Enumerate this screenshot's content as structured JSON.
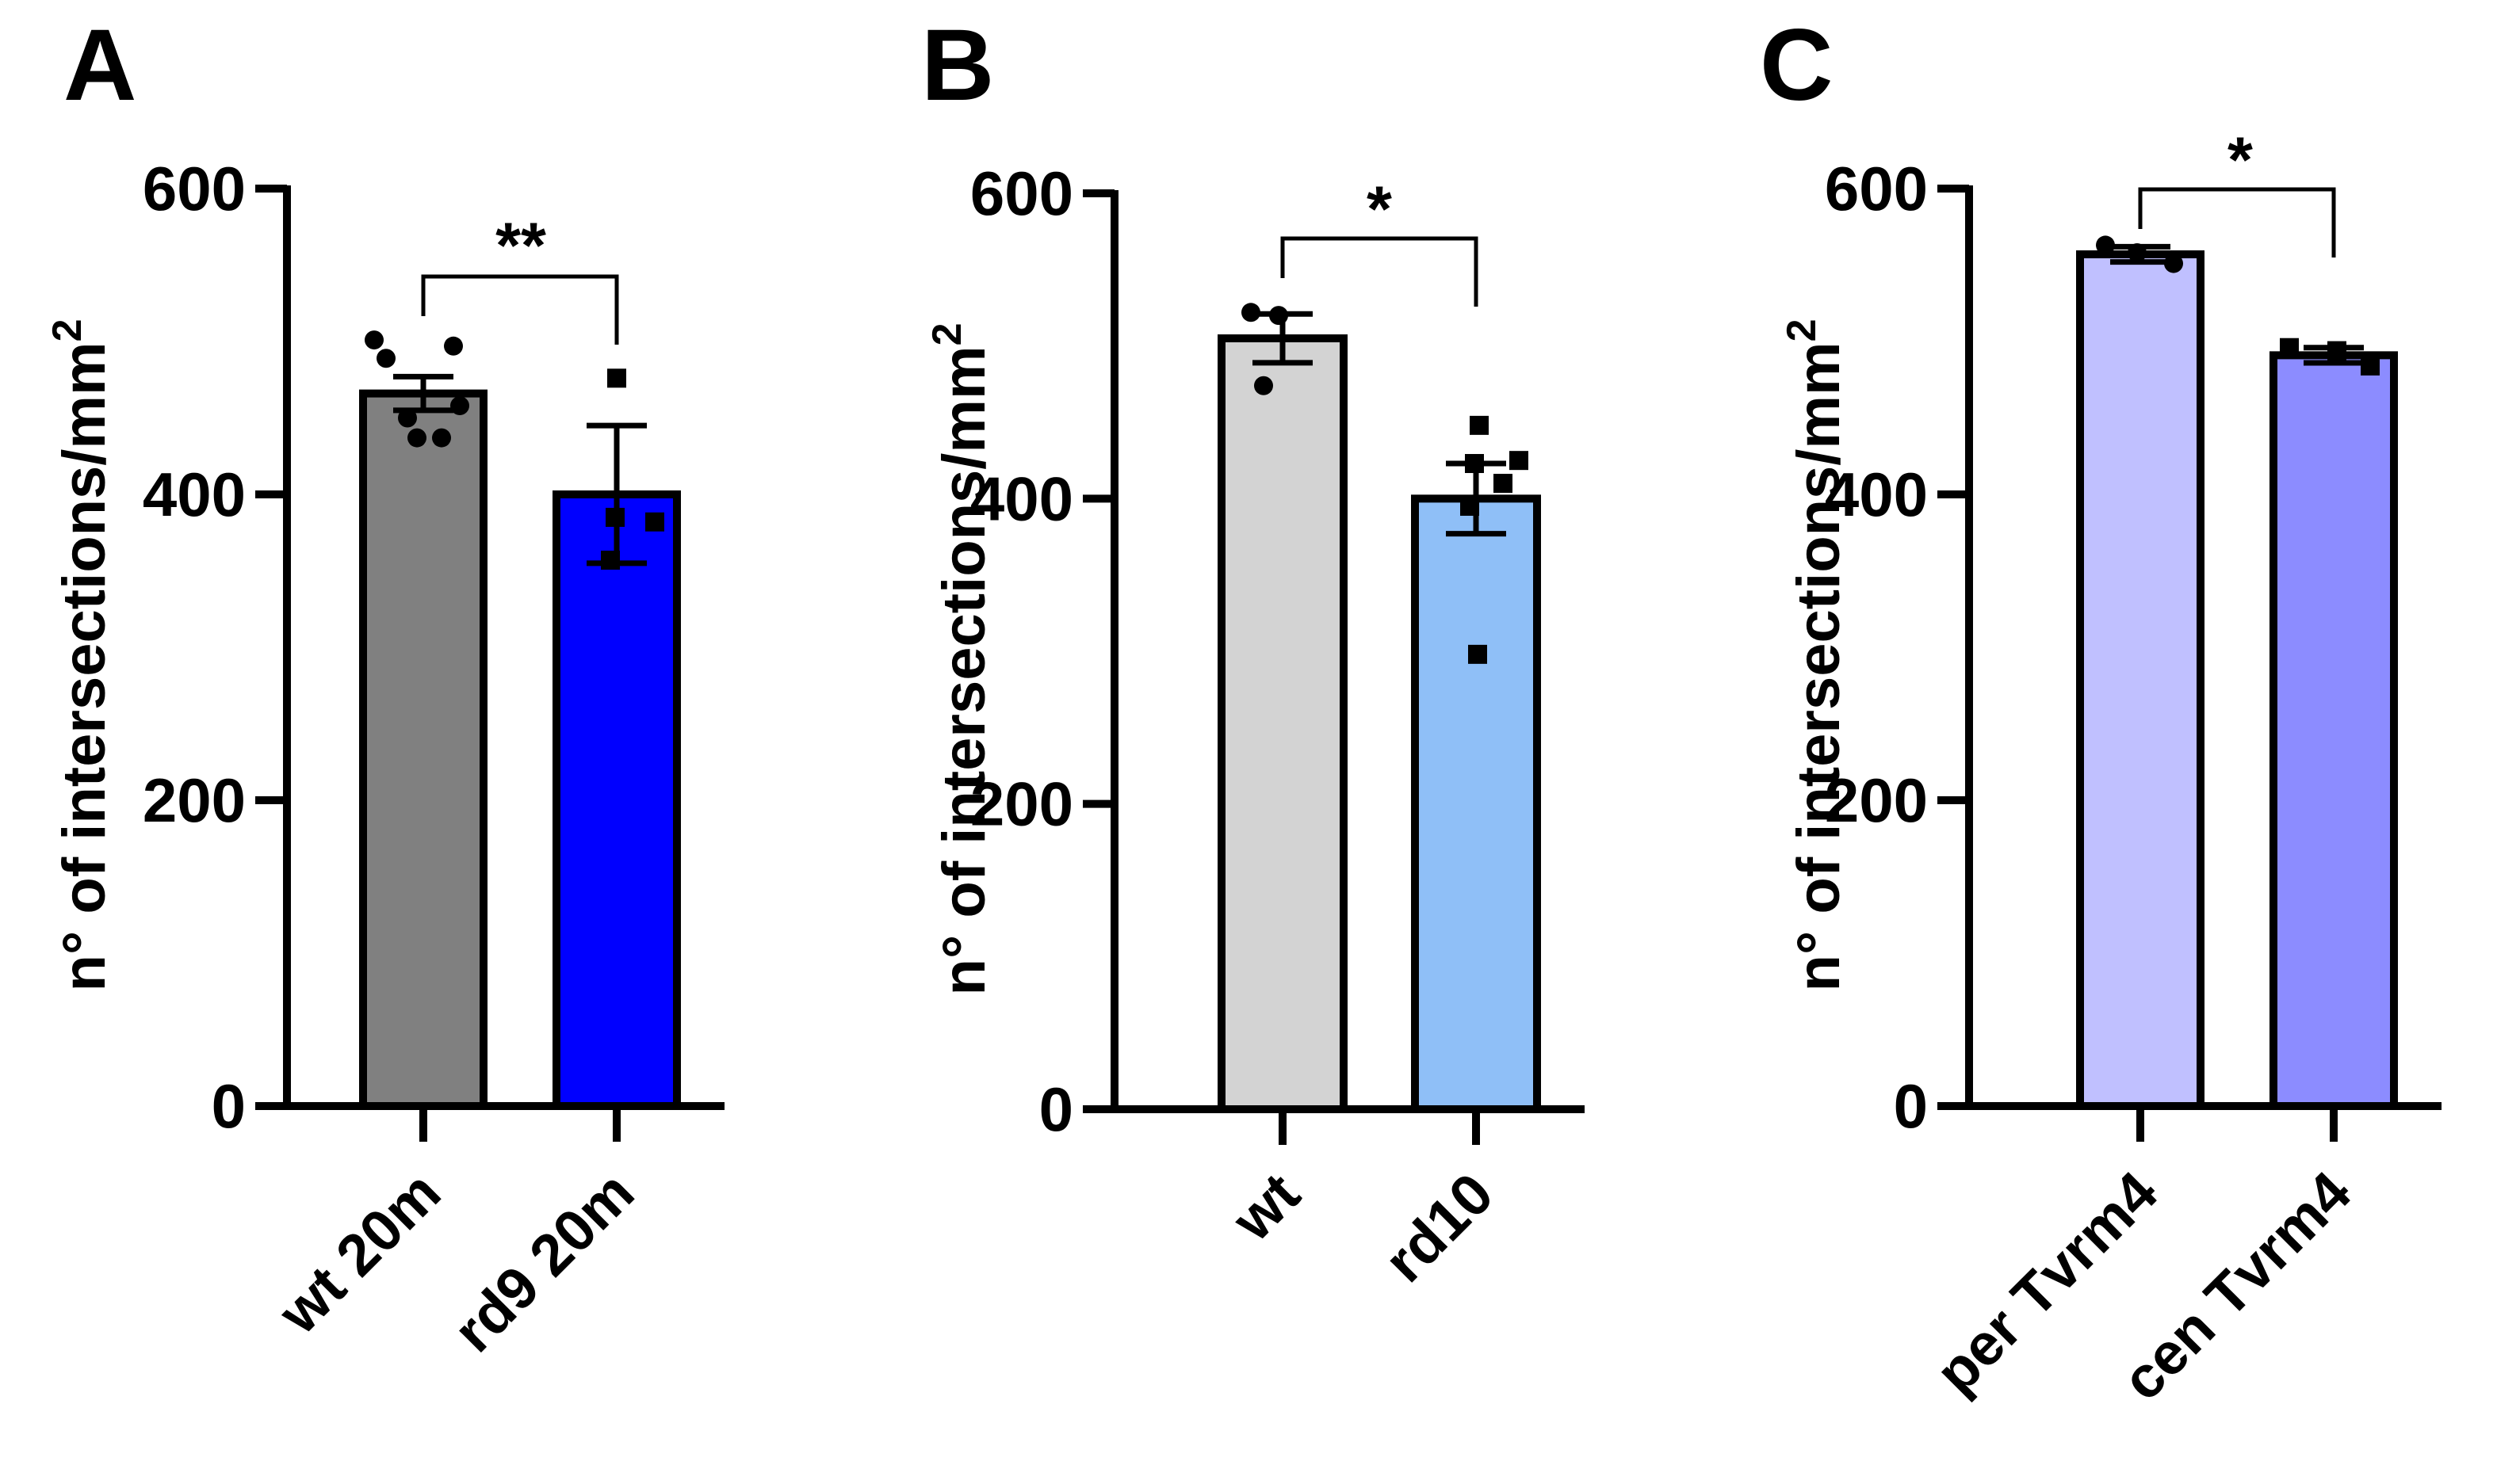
{
  "chart_data": [
    {
      "panel": "A",
      "type": "bar",
      "title": "",
      "xlabel": "",
      "ylabel": "n° of intersections/mm",
      "ylabel_sup": "2",
      "ylim": [
        0,
        600
      ],
      "yticks": [
        0,
        200,
        400,
        600
      ],
      "categories": [
        "wt 20m",
        "rd9 20m"
      ],
      "values": [
        466,
        400
      ],
      "errors": [
        11,
        45
      ],
      "bar_colors": [
        "#808080",
        "#0000ff"
      ],
      "points": [
        [
          501,
          497,
          489,
          458,
          450,
          437,
          437
        ],
        [
          476,
          385,
          382,
          357
        ]
      ],
      "point_shapes": [
        "circle",
        "square"
      ],
      "significance": "**"
    },
    {
      "panel": "B",
      "type": "bar",
      "title": "",
      "xlabel": "",
      "ylabel": "n° of intersections/mm",
      "ylabel_sup": "2",
      "ylim": [
        0,
        600
      ],
      "yticks": [
        0,
        200,
        400,
        600
      ],
      "categories": [
        "wt",
        "rd10"
      ],
      "values": [
        505,
        400
      ],
      "errors": [
        16,
        23
      ],
      "bar_colors": [
        "#d3d3d3",
        "#8fbff7"
      ],
      "points": [
        [
          522,
          520,
          474
        ],
        [
          448,
          425,
          423,
          410,
          395,
          298
        ]
      ],
      "point_shapes": [
        "circle",
        "square"
      ],
      "significance": "*"
    },
    {
      "panel": "C",
      "type": "bar",
      "title": "",
      "xlabel": "",
      "ylabel": "n° of intersections/mm",
      "ylabel_sup": "2",
      "ylim": [
        0,
        600
      ],
      "yticks": [
        0,
        200,
        400,
        600
      ],
      "categories": [
        "per Tvrm4",
        "cen Tvrm4"
      ],
      "values": [
        557,
        491
      ],
      "errors": [
        5,
        5
      ],
      "bar_colors": [
        "#c0c0ff",
        "#8c8cff"
      ],
      "points": [
        [
          563,
          558,
          551
        ],
        [
          496,
          494,
          484
        ]
      ],
      "point_shapes": [
        "circle",
        "square"
      ],
      "significance": "*"
    }
  ]
}
